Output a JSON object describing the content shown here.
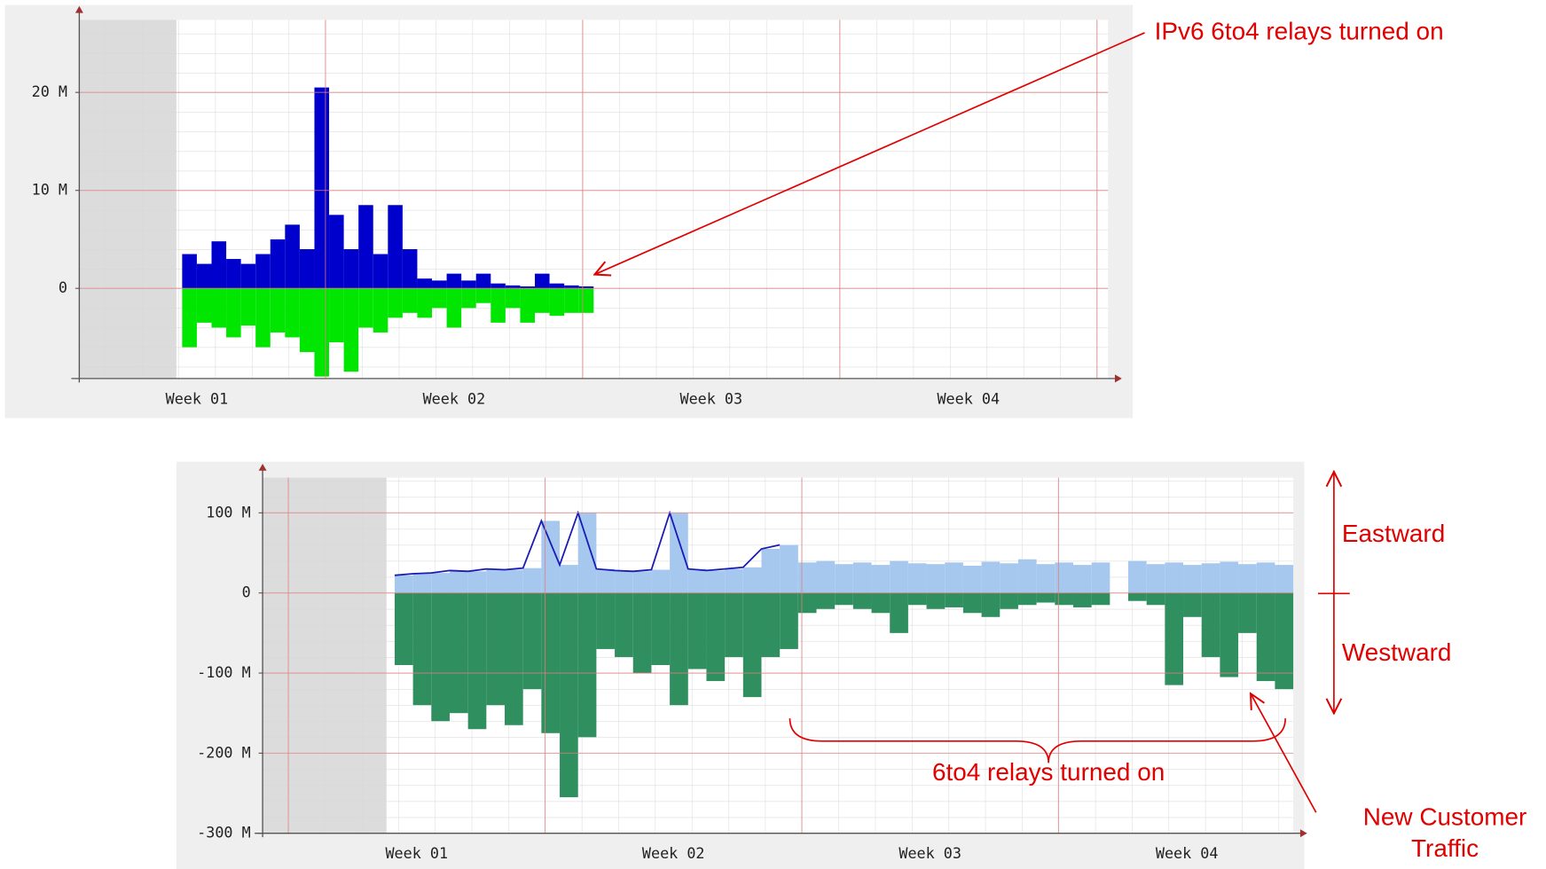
{
  "chart_data": [
    {
      "type": "bar",
      "x": [
        3.1,
        3.5,
        3.9,
        4.3,
        4.7,
        5.1,
        5.5,
        5.9,
        6.3,
        6.7,
        7.1,
        7.5,
        7.9,
        8.3,
        8.7,
        9.1,
        9.5,
        9.9,
        10.3,
        10.7,
        11.1,
        11.5,
        11.9,
        12.3,
        12.7,
        13.1,
        13.5,
        13.9
      ],
      "series": [
        {
          "color": "#0000cc",
          "values": [
            3.5,
            2.5,
            4.8,
            3,
            2.5,
            3.5,
            5,
            6.5,
            4,
            20.5,
            7.5,
            4,
            8.5,
            3.5,
            8.5,
            4,
            1,
            0.8,
            1.5,
            0.8,
            1.5,
            0.5,
            0.3,
            0.2,
            1.5,
            0.5,
            0.3,
            0.2
          ]
        },
        {
          "color": "#00e600",
          "values": [
            -6,
            -3.5,
            -4,
            -5,
            -3.8,
            -6,
            -4.5,
            -5,
            -6.5,
            -9,
            -5.5,
            -8.5,
            -4,
            -4.5,
            -3,
            -2.5,
            -3,
            -2,
            -4,
            -2,
            -1.5,
            -3.5,
            -2,
            -3.5,
            -2.5,
            -2.8,
            -2.5,
            -2.5
          ]
        }
      ],
      "xlim": [
        0.3,
        28.3
      ],
      "xticks": [
        {
          "value": 3.5,
          "label": "Week 01"
        },
        {
          "value": 10.5,
          "label": "Week 02"
        },
        {
          "value": 17.5,
          "label": "Week 03"
        },
        {
          "value": 24.5,
          "label": "Week 04"
        }
      ],
      "xgrid": [
        7,
        14,
        21,
        28
      ],
      "ylim": [
        -9.2,
        27.4
      ],
      "yticks": [
        0,
        {
          "value": 10,
          "label": "10 M"
        },
        {
          "value": 20,
          "label": "20 M"
        }
      ],
      "grid": true,
      "annotations": {
        "relays": "IPv6 6to4 relays turned on"
      }
    },
    {
      "type": "bar",
      "x": [
        2.9,
        3.4,
        3.9,
        4.4,
        4.9,
        5.4,
        5.9,
        6.4,
        6.9,
        7.4,
        7.9,
        8.4,
        8.9,
        9.4,
        9.9,
        10.4,
        10.9,
        11.4,
        11.9,
        12.4,
        12.9,
        13.4,
        13.9,
        14.4,
        14.9,
        15.4,
        15.9,
        16.4,
        16.9,
        17.4,
        17.9,
        18.4,
        18.9,
        19.4,
        19.9,
        20.4,
        20.9,
        21.4,
        21.9,
        22.4,
        22.9,
        23.4,
        23.9,
        24.4,
        24.9,
        25.4,
        25.9,
        26.4,
        26.9
      ],
      "series": [
        {
          "color": "#a6c8ee",
          "values": [
            22,
            24,
            25,
            28,
            27,
            30,
            29,
            31,
            90,
            35,
            100,
            30,
            28,
            27,
            29,
            100,
            30,
            28,
            30,
            32,
            55,
            60,
            38,
            40,
            36,
            38,
            35,
            40,
            37,
            36,
            38,
            34,
            39,
            37,
            42,
            36,
            38,
            35,
            38,
            null,
            40,
            36,
            38,
            35,
            37,
            39,
            36,
            38,
            35
          ]
        },
        {
          "color": "#1a1ab4",
          "line": true,
          "values": [
            22,
            24,
            25,
            28,
            27,
            30,
            29,
            31,
            90,
            35,
            100,
            30,
            28,
            27,
            29,
            100,
            30,
            28,
            30,
            32,
            55,
            60,
            null,
            null,
            null,
            null,
            null,
            null,
            null,
            null,
            null,
            null,
            null,
            null,
            null,
            null,
            null,
            null,
            null,
            null,
            null,
            null,
            null,
            null,
            null,
            null,
            null,
            null,
            null
          ]
        },
        {
          "color": "#2f8f5f",
          "values": [
            -90,
            -140,
            -160,
            -150,
            -170,
            -140,
            -165,
            -120,
            -175,
            -255,
            -180,
            -70,
            -80,
            -100,
            -90,
            -140,
            -95,
            -110,
            -80,
            -130,
            -80,
            -70,
            -25,
            -20,
            -15,
            -20,
            -25,
            -50,
            -15,
            -20,
            -18,
            -25,
            -30,
            -20,
            -15,
            -12,
            -15,
            -18,
            -15,
            null,
            -10,
            -15,
            -115,
            -30,
            -80,
            -105,
            -50,
            -110,
            -120
          ]
        }
      ],
      "xlim": [
        -0.7,
        27.4
      ],
      "xticks": [
        {
          "value": 3.5,
          "label": "Week 01"
        },
        {
          "value": 10.5,
          "label": "Week 02"
        },
        {
          "value": 17.5,
          "label": "Week 03"
        },
        {
          "value": 24.5,
          "label": "Week 04"
        }
      ],
      "xgrid": [
        0,
        7,
        14,
        21
      ],
      "ylim": [
        -300,
        144
      ],
      "yticks": [
        {
          "value": -300,
          "label": "-300 M"
        },
        {
          "value": -200,
          "label": "-200 M"
        },
        {
          "value": -100,
          "label": "-100 M"
        },
        0,
        {
          "value": 100,
          "label": "100 M"
        }
      ],
      "grid": true,
      "annotations": {
        "relays": "6to4 relays turned on",
        "eastward": "Eastward",
        "westward": "Westward",
        "customer": [
          "New Customer",
          "Traffic"
        ]
      }
    }
  ]
}
